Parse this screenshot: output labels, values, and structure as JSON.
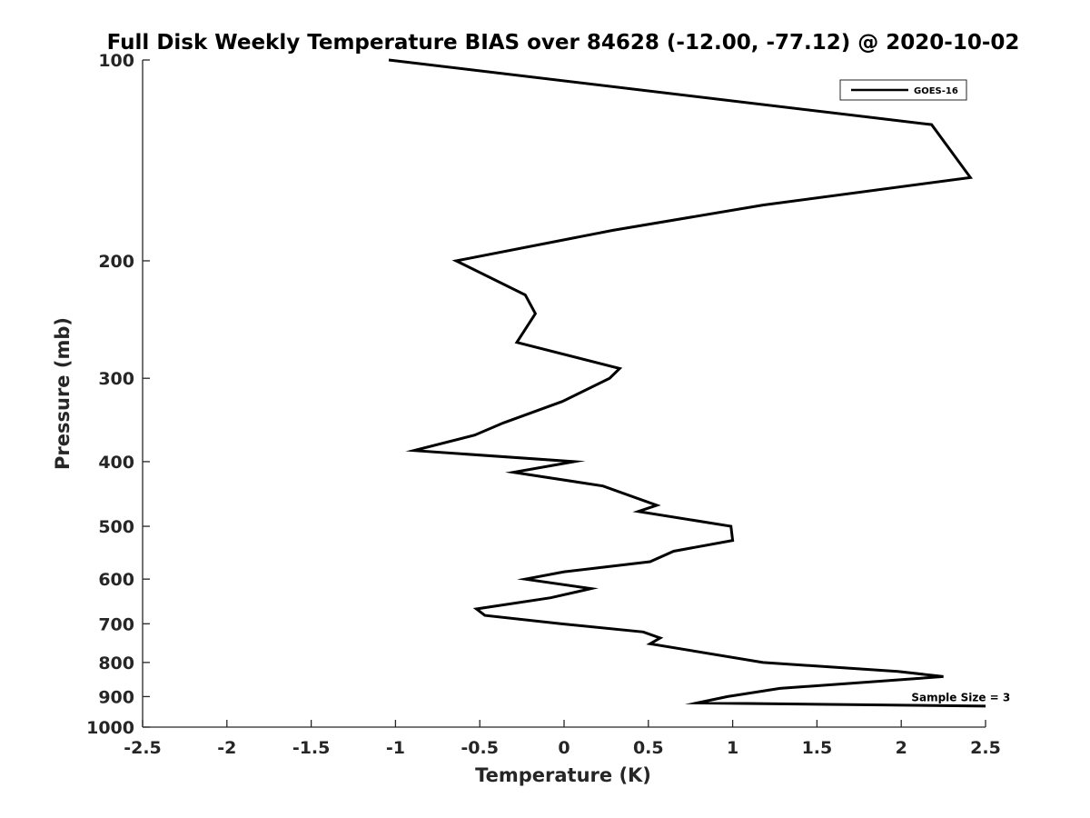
{
  "chart_data": {
    "type": "line",
    "title": "Full Disk Weekly Temperature BIAS over 84628 (-12.00, -77.12) @ 2020-10-02",
    "xlabel": "Temperature (K)",
    "ylabel": "Pressure (mb)",
    "xlim": [
      -2.5,
      2.5
    ],
    "ylim": [
      100,
      1000
    ],
    "y_scale": "log",
    "y_reversed": true,
    "grid": false,
    "legend_position": "top-right",
    "x_ticks": [
      -2.5,
      -2,
      -1.5,
      -1,
      -0.5,
      0,
      0.5,
      1,
      1.5,
      2,
      2.5
    ],
    "x_tick_labels": [
      "-2.5",
      "-2",
      "-1.5",
      "-1",
      "-0.5",
      "0",
      "0.5",
      "1",
      "1.5",
      "2",
      "2.5"
    ],
    "y_ticks": [
      100,
      200,
      300,
      400,
      500,
      600,
      700,
      800,
      900,
      1000
    ],
    "y_tick_labels": [
      "100",
      "200",
      "300",
      "400",
      "500",
      "600",
      "700",
      "800",
      "900",
      "1000"
    ],
    "series": [
      {
        "name": "GOES-16",
        "color": "#000000",
        "points": [
          {
            "x": -1.04,
            "y": 100
          },
          {
            "x": 2.18,
            "y": 125
          },
          {
            "x": 2.41,
            "y": 150
          },
          {
            "x": 1.18,
            "y": 165
          },
          {
            "x": 0.29,
            "y": 180
          },
          {
            "x": -0.64,
            "y": 200
          },
          {
            "x": -0.23,
            "y": 225
          },
          {
            "x": -0.17,
            "y": 240
          },
          {
            "x": -0.28,
            "y": 265
          },
          {
            "x": 0.33,
            "y": 290
          },
          {
            "x": 0.27,
            "y": 300
          },
          {
            "x": -0.01,
            "y": 325
          },
          {
            "x": -0.36,
            "y": 350
          },
          {
            "x": -0.53,
            "y": 365
          },
          {
            "x": -0.89,
            "y": 385
          },
          {
            "x": 0.06,
            "y": 400
          },
          {
            "x": -0.3,
            "y": 415
          },
          {
            "x": 0.23,
            "y": 435
          },
          {
            "x": 0.55,
            "y": 465
          },
          {
            "x": 0.44,
            "y": 475
          },
          {
            "x": 0.99,
            "y": 500
          },
          {
            "x": 1.0,
            "y": 525
          },
          {
            "x": 0.65,
            "y": 545
          },
          {
            "x": 0.51,
            "y": 565
          },
          {
            "x": 0.0,
            "y": 585
          },
          {
            "x": -0.23,
            "y": 600
          },
          {
            "x": 0.16,
            "y": 620
          },
          {
            "x": -0.08,
            "y": 640
          },
          {
            "x": -0.52,
            "y": 665
          },
          {
            "x": -0.47,
            "y": 680
          },
          {
            "x": -0.02,
            "y": 700
          },
          {
            "x": 0.47,
            "y": 720
          },
          {
            "x": 0.57,
            "y": 735
          },
          {
            "x": 0.51,
            "y": 750
          },
          {
            "x": 1.18,
            "y": 800
          },
          {
            "x": 1.98,
            "y": 825
          },
          {
            "x": 2.25,
            "y": 840
          },
          {
            "x": 1.28,
            "y": 875
          },
          {
            "x": 0.97,
            "y": 900
          },
          {
            "x": 0.79,
            "y": 920
          },
          {
            "x": 2.5,
            "y": 930
          }
        ]
      }
    ],
    "annotations": [
      {
        "text": "Sample Size = 3",
        "x": 2.06,
        "y": 900
      }
    ]
  }
}
